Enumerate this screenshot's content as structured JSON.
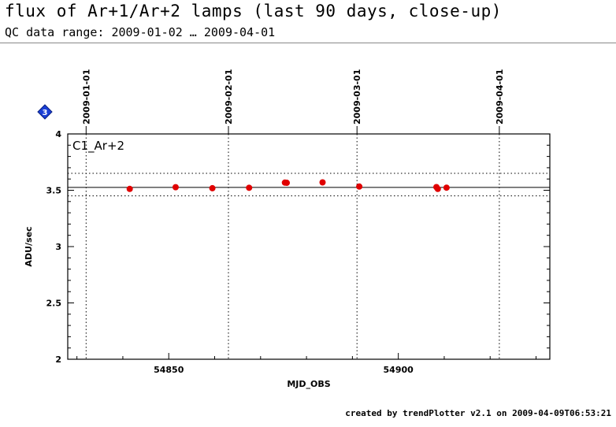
{
  "header": {
    "title": "flux of Ar+1/Ar+2 lamps (last 90 days, close-up)",
    "subtitle": "QC data range: 2009-01-02 … 2009-04-01"
  },
  "footer": {
    "credit": "created by trendPlotter v2.1 on 2009-04-09T06:53:21"
  },
  "badge": {
    "label": "3",
    "color": "#1a3fd6"
  },
  "chart_data": {
    "type": "scatter",
    "panel_label": "C1_Ar+2",
    "xlabel": "MJD_OBS",
    "ylabel": "ADU/sec",
    "xlim": [
      54828,
      54933
    ],
    "ylim": [
      2,
      4
    ],
    "xticks": [
      54850,
      54900
    ],
    "yticks": [
      2,
      2.5,
      3,
      3.5,
      4
    ],
    "ytick_labels": [
      "2",
      "2.5",
      "3",
      "3.5",
      "4"
    ],
    "point_color": "#e00000",
    "reference_line": 3.525,
    "threshold_lines": [
      3.45,
      3.65
    ],
    "date_markers": [
      {
        "mjd": 54832,
        "label": "2009-01-01"
      },
      {
        "mjd": 54863,
        "label": "2009-02-01"
      },
      {
        "mjd": 54891,
        "label": "2009-03-01"
      },
      {
        "mjd": 54922,
        "label": "2009-04-01"
      }
    ],
    "points": [
      {
        "x": 54841.5,
        "y": 3.512
      },
      {
        "x": 54851.5,
        "y": 3.527
      },
      {
        "x": 54859.5,
        "y": 3.518
      },
      {
        "x": 54867.5,
        "y": 3.522
      },
      {
        "x": 54875.3,
        "y": 3.568
      },
      {
        "x": 54875.7,
        "y": 3.566
      },
      {
        "x": 54883.5,
        "y": 3.57
      },
      {
        "x": 54891.5,
        "y": 3.533
      },
      {
        "x": 54908.3,
        "y": 3.528
      },
      {
        "x": 54908.6,
        "y": 3.512
      },
      {
        "x": 54910.5,
        "y": 3.523
      }
    ]
  }
}
